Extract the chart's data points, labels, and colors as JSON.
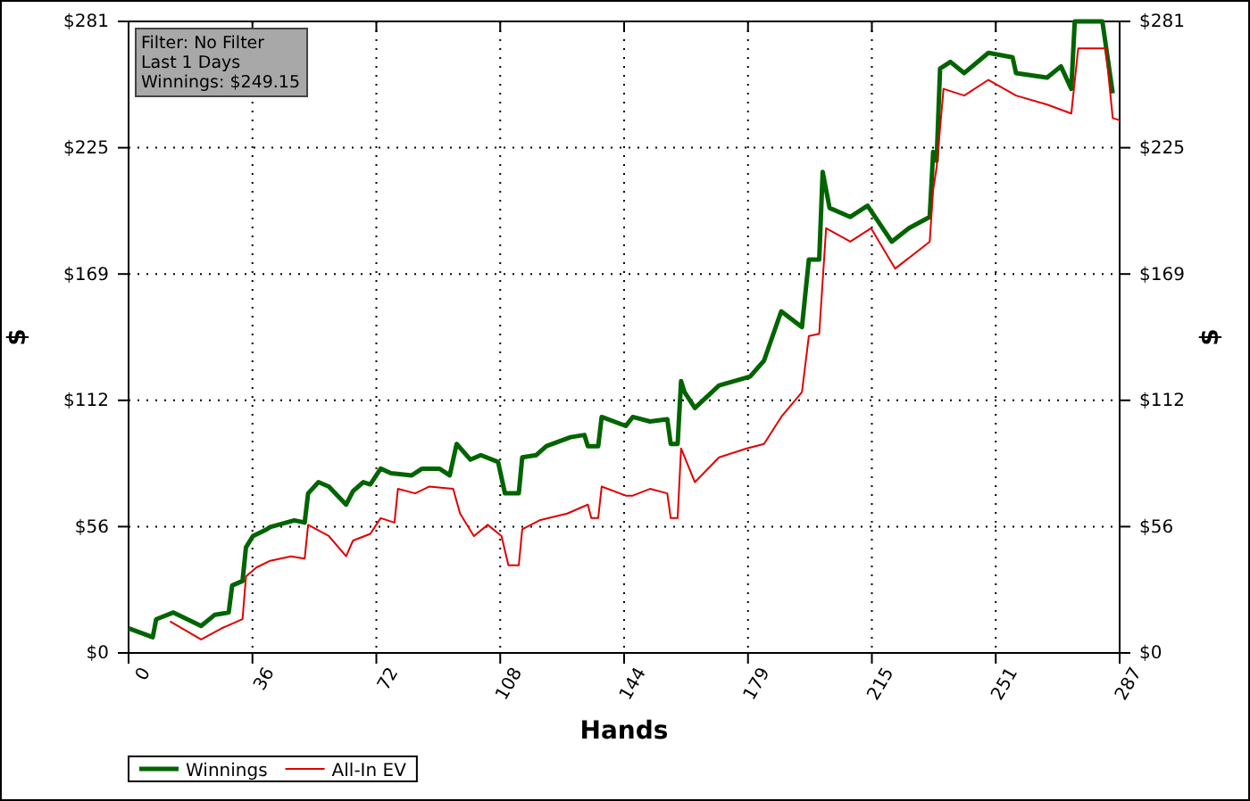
{
  "chart_data": {
    "type": "line",
    "xlabel": "Hands",
    "ylabel": "$",
    "y2label": "$",
    "annotations": [
      "Filter: No Filter",
      "Last  1 Days",
      "Winnings: $249.15"
    ],
    "xlim": [
      0,
      287
    ],
    "xticks": [
      0,
      {
        "value": 35.875,
        "label": "36"
      },
      {
        "value": 71.75,
        "label": "72"
      },
      {
        "value": 107.625,
        "label": "108"
      },
      {
        "value": 143.5,
        "label": "144"
      },
      {
        "value": 179.375,
        "label": "179"
      },
      {
        "value": 215.25,
        "label": "215"
      },
      {
        "value": 251.125,
        "label": "251"
      },
      287
    ],
    "ylim": [
      0,
      281
    ],
    "yticks": [
      {
        "value": 0,
        "label": "$0"
      },
      {
        "value": 56.2,
        "label": "$56"
      },
      {
        "value": 112.4,
        "label": "$112"
      },
      {
        "value": 168.6,
        "label": "$169"
      },
      {
        "value": 224.8,
        "label": "$225"
      },
      {
        "value": 281,
        "label": "$281"
      }
    ],
    "y2lim": [
      0,
      281
    ],
    "y2ticks": [
      {
        "value": 0,
        "label": "$0"
      },
      {
        "value": 56.2,
        "label": "$56"
      },
      {
        "value": 112.4,
        "label": "$112"
      },
      {
        "value": 168.6,
        "label": "$169"
      },
      {
        "value": 224.8,
        "label": "$225"
      },
      {
        "value": 281,
        "label": "$281"
      }
    ],
    "grid": true,
    "legend": "bottom left",
    "line_style": "solid",
    "marker": "none",
    "series": [
      {
        "name": "Winnings",
        "color": "#006400",
        "x": [
          0,
          7,
          8,
          13,
          21,
          25,
          29,
          30,
          33,
          34,
          36,
          40,
          41,
          48,
          51,
          52,
          55,
          58,
          63,
          65,
          68,
          70,
          73,
          76,
          82,
          85,
          90,
          93,
          95,
          99,
          102,
          107,
          109,
          113,
          114,
          118,
          121,
          128,
          132,
          133,
          136,
          137,
          144,
          146,
          151,
          156,
          157,
          159,
          160,
          161,
          164,
          171,
          180,
          184,
          189,
          195,
          197,
          200,
          201,
          203,
          209,
          214,
          221,
          226,
          232,
          233,
          234,
          235,
          238,
          242,
          249,
          256,
          257,
          266,
          270,
          273,
          274,
          282,
          285
        ],
        "values": [
          11,
          7,
          15,
          18,
          12,
          17,
          18,
          30,
          32,
          47,
          52,
          55,
          56,
          59,
          58,
          71,
          76,
          74,
          66,
          72,
          76,
          75,
          82,
          80,
          79,
          82,
          82,
          79,
          93,
          86,
          88,
          85,
          71,
          71,
          87,
          88,
          92,
          96,
          97,
          92,
          92,
          105,
          101,
          105,
          103,
          104,
          93,
          93,
          121,
          116,
          109,
          119,
          123,
          130,
          152,
          145,
          175,
          175,
          214,
          198,
          194,
          199,
          183,
          189,
          194,
          223,
          219,
          260,
          263,
          258,
          267,
          265,
          258,
          256,
          261,
          251,
          281,
          281,
          249
        ]
      },
      {
        "name": "All-In EV",
        "color": "#e00000",
        "x": [
          12,
          21,
          27,
          33,
          34,
          37,
          41,
          47,
          51,
          52,
          58,
          63,
          65,
          70,
          73,
          77,
          78,
          83,
          87,
          94,
          96,
          100,
          104,
          108,
          110,
          113,
          114,
          119,
          127,
          133,
          134,
          136,
          137,
          144,
          146,
          151,
          156,
          157,
          159,
          160,
          164,
          171,
          179,
          184,
          189,
          195,
          197,
          200,
          202,
          209,
          215,
          222,
          232,
          233,
          234,
          236,
          242,
          249,
          257,
          266,
          273,
          275,
          283,
          285,
          287
        ],
        "values": [
          14,
          6,
          11,
          15,
          34,
          38,
          41,
          43,
          42,
          57,
          52,
          43,
          50,
          53,
          60,
          58,
          73,
          71,
          74,
          73,
          62,
          52,
          57,
          52,
          39,
          39,
          55,
          59,
          62,
          66,
          60,
          60,
          74,
          70,
          70,
          73,
          71,
          60,
          60,
          91,
          76,
          87,
          91,
          93,
          105,
          116,
          141,
          142,
          189,
          183,
          189,
          171,
          183,
          206,
          216,
          251,
          248,
          255,
          248,
          244,
          240,
          269,
          269,
          238,
          237
        ]
      }
    ]
  }
}
